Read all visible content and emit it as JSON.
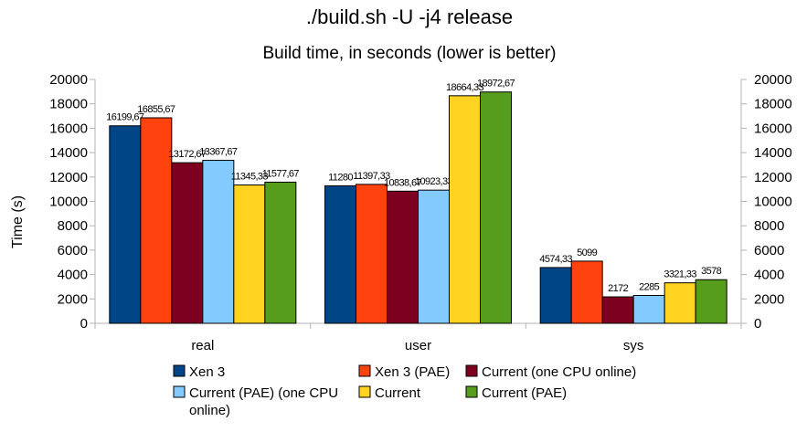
{
  "chart_data": {
    "type": "bar",
    "title": "./build.sh -U -j4 release",
    "subtitle": "Build time, in seconds (lower is better)",
    "xlabel": "",
    "ylabel": "Time (s)",
    "ylim": [
      0,
      20000
    ],
    "yticks": [
      0,
      2000,
      4000,
      6000,
      8000,
      10000,
      12000,
      14000,
      16000,
      18000,
      20000
    ],
    "secondary_y_axis": true,
    "grid": false,
    "legend_position": "bottom",
    "categories": [
      "real",
      "user",
      "sys"
    ],
    "series": [
      {
        "name": "Xen 3",
        "color": "#004586",
        "values": [
          16199.67,
          11280,
          4574.33
        ],
        "labels": [
          "16199,67",
          "11280",
          "4574,33"
        ]
      },
      {
        "name": "Xen 3 (PAE)",
        "color": "#ff420e",
        "values": [
          16855.67,
          11397.33,
          5099
        ],
        "labels": [
          "16855,67",
          "11397,33",
          "5099"
        ]
      },
      {
        "name": "Current (one CPU online)",
        "color": "#7e0021",
        "values": [
          13172.67,
          10838.67,
          2172
        ],
        "labels": [
          "13172,67",
          "10838,67",
          "2172"
        ]
      },
      {
        "name": "Current (PAE) (one CPU online)",
        "color": "#83caff",
        "values": [
          13367.67,
          10923.33,
          2285
        ],
        "labels": [
          "13367,67",
          "10923,33",
          "2285"
        ]
      },
      {
        "name": "Current",
        "color": "#ffd320",
        "values": [
          11345.33,
          18664.33,
          3321.33
        ],
        "labels": [
          "11345,33",
          "18664,33",
          "3321,33"
        ]
      },
      {
        "name": "Current (PAE)",
        "color": "#579d1c",
        "values": [
          11577.67,
          18972.67,
          3578
        ],
        "labels": [
          "11577,67",
          "18972,67",
          "3578"
        ]
      }
    ]
  }
}
